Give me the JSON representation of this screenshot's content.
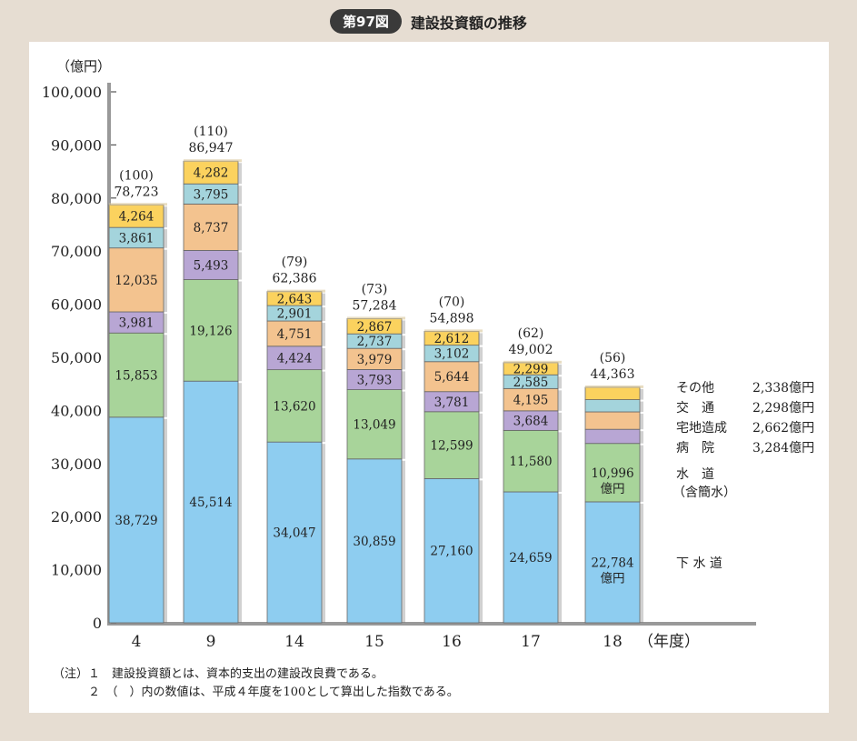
{
  "figure": {
    "badge": "第97図",
    "title": "建設投資額の推移"
  },
  "chart_data": {
    "type": "bar",
    "stacked": true,
    "title": "建設投資額の推移",
    "ylabel": "（億円）",
    "xlabel": "（年度）",
    "ylim": [
      0,
      100000
    ],
    "yticks": [
      0,
      10000,
      20000,
      30000,
      40000,
      50000,
      60000,
      70000,
      80000,
      90000,
      100000
    ],
    "ytick_labels": [
      "0",
      "10,000",
      "20,000",
      "30,000",
      "40,000",
      "50,000",
      "60,000",
      "70,000",
      "80,000",
      "90,000",
      "100,000"
    ],
    "categories": [
      "4",
      "9",
      "14",
      "15",
      "16",
      "17",
      "18"
    ],
    "totals": [
      78723,
      86947,
      62386,
      57284,
      54898,
      49002,
      44363
    ],
    "total_labels": [
      "78,723",
      "86,947",
      "62,386",
      "57,284",
      "54,898",
      "49,002",
      "44,363"
    ],
    "index_labels": [
      "(100)",
      "(110)",
      "(79)",
      "(73)",
      "(70)",
      "(62)",
      "(56)"
    ],
    "series": [
      {
        "key": "sewer",
        "name": "下 水 道",
        "color": "#8ecdf0",
        "values": [
          38729,
          45514,
          34047,
          30859,
          27160,
          24659,
          22784
        ],
        "labels": [
          "38,729",
          "45,514",
          "34,047",
          "30,859",
          "27,160",
          "24,659",
          "22,784"
        ]
      },
      {
        "key": "water",
        "name": "水　道",
        "name2": "（含簡水）",
        "color": "#a8d49a",
        "values": [
          15853,
          19126,
          13620,
          13049,
          12599,
          11580,
          10996
        ],
        "labels": [
          "15,853",
          "19,126",
          "13,620",
          "13,049",
          "12,599",
          "11,580",
          "10,996"
        ]
      },
      {
        "key": "housing",
        "name": "宅地造成",
        "color": "#b8a6d4",
        "values": [
          3981,
          5493,
          4424,
          3793,
          3781,
          3684,
          2662
        ],
        "labels": [
          "3,981",
          "5,493",
          "4,424",
          "3,793",
          "3,781",
          "3,684",
          ""
        ]
      },
      {
        "key": "hospital",
        "name": "病　院",
        "color": "#f3c38f",
        "values": [
          12035,
          8737,
          4751,
          3979,
          5644,
          4195,
          3284
        ],
        "labels": [
          "12,035",
          "8,737",
          "4,751",
          "3,979",
          "5,644",
          "4,195",
          ""
        ]
      },
      {
        "key": "transport",
        "name": "交　通",
        "color": "#a4d4dc",
        "values": [
          3861,
          3795,
          2901,
          2737,
          3102,
          2585,
          2298
        ],
        "labels": [
          "3,861",
          "3,795",
          "2,901",
          "2,737",
          "3,102",
          "2,585",
          ""
        ]
      },
      {
        "key": "other",
        "name": "その他",
        "color": "#fbd25e",
        "values": [
          4264,
          4282,
          2643,
          2867,
          2612,
          2299,
          2338
        ],
        "labels": [
          "4,264",
          "4,282",
          "2,643",
          "2,867",
          "2,612",
          "2,299",
          ""
        ]
      }
    ],
    "legend_values": {
      "other": "2,338億円",
      "transport": "2,298億円",
      "housing": "2,662億円",
      "hospital": "3,284億円"
    },
    "unit_suffix": "億円",
    "legend_position": "right"
  },
  "notes": {
    "line1": "（注）１　建設投資額とは、資本的支出の建設改良費である。",
    "line2": "　　　２　（　）内の数値は、平成４年度を100として算出した指数である。"
  }
}
